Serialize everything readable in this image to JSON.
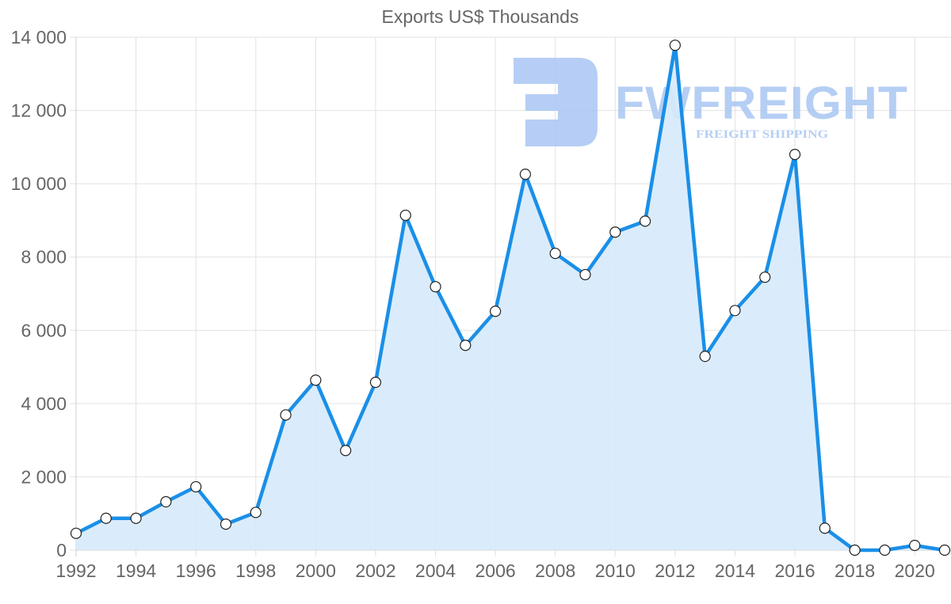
{
  "chart_data": {
    "type": "area",
    "title": "Exports US$ Thousands",
    "xlabel": "",
    "ylabel": "",
    "x": [
      1992,
      1993,
      1994,
      1995,
      1996,
      1997,
      1998,
      1999,
      2000,
      2001,
      2002,
      2003,
      2004,
      2005,
      2006,
      2007,
      2008,
      2009,
      2010,
      2011,
      2012,
      2013,
      2014,
      2015,
      2016,
      2017,
      2018,
      2019,
      2020,
      2021
    ],
    "series": [
      {
        "name": "Exports US$ Thousands",
        "color": "#1a8fe8",
        "fill": "#d6eafb",
        "values": [
          460,
          870,
          870,
          1320,
          1730,
          710,
          1030,
          3690,
          4640,
          2720,
          4580,
          9140,
          7190,
          5590,
          6520,
          10260,
          8100,
          7520,
          8680,
          8980,
          13780,
          5290,
          6540,
          7450,
          10800,
          600,
          0,
          0,
          130,
          0
        ]
      }
    ],
    "ylim": [
      0,
      14000
    ],
    "yticks": [
      "0",
      "2 000",
      "4 000",
      "6 000",
      "8 000",
      "10 000",
      "12 000",
      "14 000"
    ],
    "xticks": [
      "1992",
      "1994",
      "1996",
      "1998",
      "2000",
      "2002",
      "2004",
      "2006",
      "2008",
      "2010",
      "2012",
      "2014",
      "2016",
      "2018",
      "2020"
    ],
    "grid": true,
    "legend": "none"
  },
  "watermark": {
    "brand": "FWFREIGHT",
    "tagline": "FREIGHT SHIPPING",
    "color": "#a9c6f3"
  }
}
